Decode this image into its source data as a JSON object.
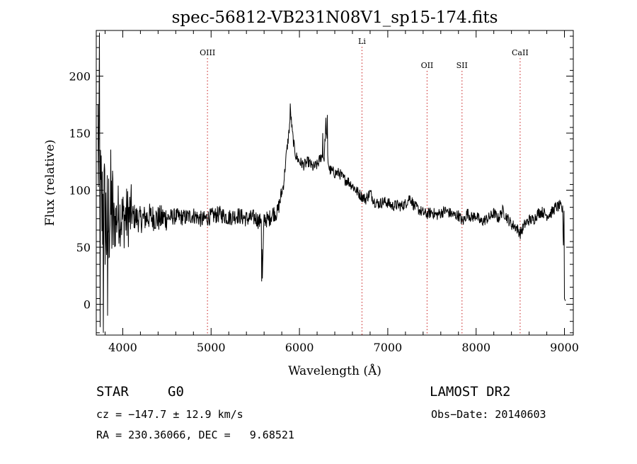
{
  "chart_data": {
    "type": "line",
    "title": "spec-56812-VB231N08V1_sp15-174.fits",
    "xlabel": "Wavelength (Å)",
    "ylabel": "Flux (relative)",
    "xlim": [
      3700,
      9100
    ],
    "ylim": [
      -27,
      240
    ],
    "x_ticks": [
      4000,
      5000,
      6000,
      7000,
      8000,
      9000
    ],
    "y_ticks": [
      0,
      50,
      100,
      150,
      200
    ],
    "grid": false,
    "series": [
      {
        "x": [
          3700,
          3740,
          3780,
          3820,
          3860,
          3900,
          3950,
          4000,
          4100,
          4200,
          4300,
          4400,
          4500,
          4600,
          4700,
          4800,
          4900,
          5000,
          5100,
          5200,
          5300,
          5400,
          5500,
          5550,
          5570,
          5580,
          5600,
          5650,
          5700,
          5750,
          5800,
          5820,
          5850,
          5880,
          5900,
          5920,
          5940,
          5960,
          6000,
          6050,
          6100,
          6150,
          6200,
          6250,
          6280,
          6300,
          6320,
          6340,
          6400,
          6450,
          6500,
          6550,
          6600,
          6650,
          6700,
          6750,
          6800,
          6850,
          6900,
          6950,
          7000,
          7050,
          7100,
          7150,
          7200,
          7250,
          7300,
          7350,
          7400,
          7450,
          7500,
          7550,
          7600,
          7650,
          7700,
          7750,
          7800,
          7850,
          7900,
          7950,
          8000,
          8050,
          8100,
          8150,
          8200,
          8250,
          8300,
          8350,
          8400,
          8450,
          8500,
          8550,
          8600,
          8650,
          8700,
          8750,
          8800,
          8850,
          8900,
          8950,
          8980,
          9000,
          9010
        ],
        "y": [
          230,
          70,
          90,
          65,
          85,
          70,
          80,
          75,
          78,
          74,
          77,
          75,
          76,
          77,
          76,
          78,
          74,
          77,
          79,
          76,
          78,
          75,
          76,
          72,
          78,
          23,
          75,
          74,
          80,
          80,
          98,
          105,
          130,
          150,
          168,
          150,
          138,
          130,
          125,
          122,
          125,
          120,
          122,
          130,
          128,
          160,
          128,
          118,
          115,
          115,
          110,
          108,
          104,
          99,
          95,
          92,
          98,
          90,
          88,
          90,
          89,
          86,
          87,
          86,
          88,
          94,
          86,
          83,
          80,
          79,
          81,
          78,
          80,
          82,
          80,
          78,
          78,
          72,
          80,
          76,
          78,
          72,
          74,
          76,
          80,
          75,
          82,
          76,
          70,
          68,
          62,
          70,
          74,
          74,
          80,
          81,
          78,
          80,
          85,
          86,
          82,
          5,
          5
        ]
      }
    ],
    "annotations": [
      {
        "label": "OIII",
        "x": 4959
      },
      {
        "label": "Li",
        "x": 6708
      },
      {
        "label": "OII",
        "x": 7445
      },
      {
        "label": "SII",
        "x": 7840
      },
      {
        "label": "CaII",
        "x": 8498
      }
    ],
    "annotation_color": "#d04040"
  },
  "info": {
    "class_label": "STAR",
    "subclass_label": "G0",
    "survey": "LAMOST DR2",
    "cz": "cz = −147.7 ± 12.9 km/s",
    "obs_date": "Obs−Date: 20140603",
    "coords": "RA = 230.36066, DEC =   9.68521"
  }
}
